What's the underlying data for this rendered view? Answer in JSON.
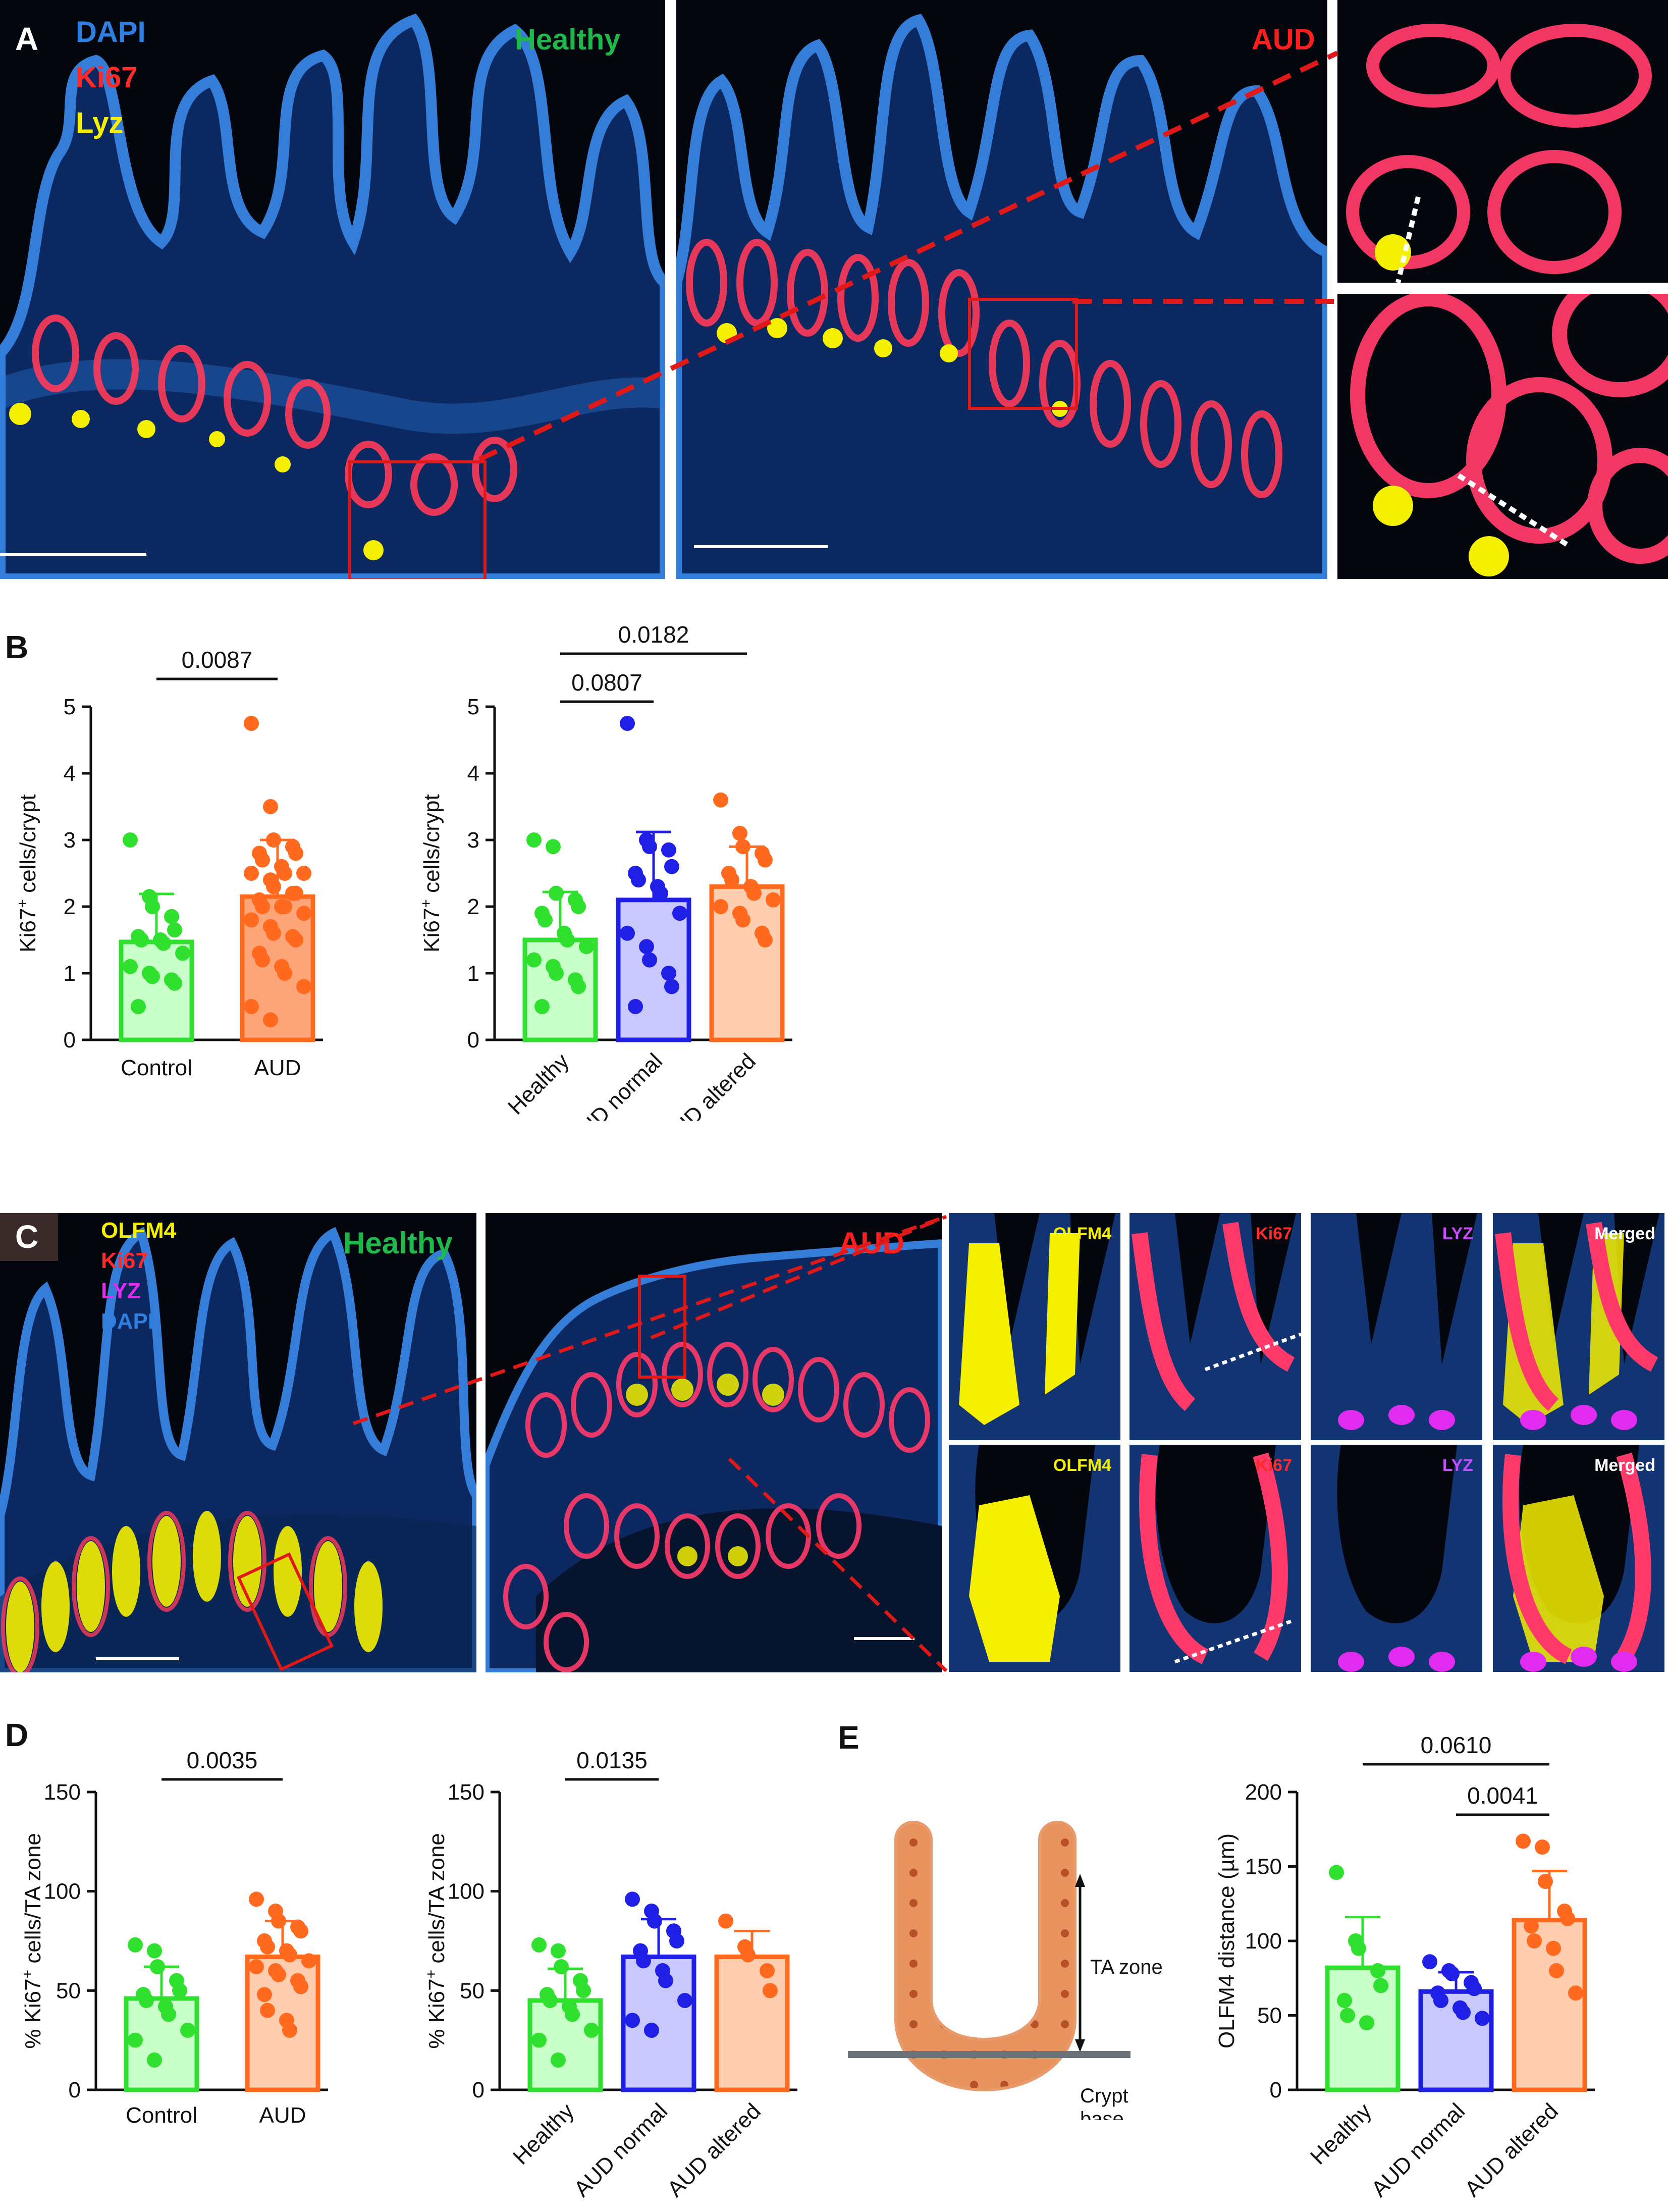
{
  "panels": {
    "a": {
      "letter": "A",
      "channels": [
        "DAPI",
        "Ki67",
        "Lyz"
      ],
      "channel_colors": [
        "#2f7fe0",
        "#ff2a2a",
        "#f4f000"
      ],
      "healthy_label": "Healthy",
      "aud_label": "AUD",
      "healthy_color": "#1fb84a",
      "aud_color": "#ff1e1e"
    },
    "b": {
      "letter": "B"
    },
    "c": {
      "letter": "C",
      "channels": [
        "OLFM4",
        "Ki67",
        "LYZ",
        "DAPI"
      ],
      "channel_colors": [
        "#f4f000",
        "#ff2a2a",
        "#e22bf0",
        "#2f7fe0"
      ],
      "healthy_label": "Healthy",
      "aud_label": "AUD",
      "inset_labels": [
        "OLFM4",
        "Ki67",
        "LYZ",
        "Merged"
      ],
      "inset_colors": [
        "#f4f000",
        "#ff2a2a",
        "#c84bff",
        "#ffffff"
      ]
    },
    "d": {
      "letter": "D"
    },
    "e": {
      "letter": "E",
      "ta_zone_label": "TA zone",
      "crypt_base_label": "Crypt\nbase"
    }
  },
  "colors": {
    "green": "#2fe02f",
    "green_fill": "#c9ffc9",
    "blue": "#1f1fe6",
    "blue_fill": "#c8c8ff",
    "orange": "#ff6a1f",
    "orange_fill": "#ffcdb0",
    "orange_fill2": "#ffa57a"
  },
  "chart_data": [
    {
      "id": "B1",
      "type": "bar",
      "categories": [
        "Control",
        "AUD"
      ],
      "means": [
        1.47,
        2.15
      ],
      "sd": [
        0.72,
        0.85
      ],
      "points": [
        [
          3.0,
          2.15,
          2.0,
          1.85,
          1.65,
          1.55,
          1.5,
          1.5,
          1.45,
          1.3,
          1.1,
          1.0,
          0.95,
          0.9,
          0.85,
          0.5
        ],
        [
          4.75,
          3.5,
          3.0,
          2.9,
          2.8,
          2.8,
          2.7,
          2.6,
          2.5,
          2.5,
          2.5,
          2.4,
          2.3,
          2.2,
          2.2,
          2.1,
          2.0,
          2.0,
          2.0,
          1.9,
          1.8,
          1.7,
          1.6,
          1.55,
          1.5,
          1.3,
          1.2,
          1.1,
          1.0,
          0.8,
          0.5,
          0.3
        ]
      ],
      "colors": [
        "green",
        "orange"
      ],
      "fills": [
        "green_fill",
        "orange_fill2"
      ],
      "ylabel_main": "Ki67",
      "ylabel_sup": "+",
      "ylabel_rest": " cells/crypt",
      "yticks": [
        "0",
        "1",
        "2",
        "3",
        "4",
        "5"
      ],
      "ylim": [
        0,
        5
      ],
      "rotated": false,
      "comparisons": [
        {
          "a": 0,
          "b": 1,
          "label": "0.0087"
        }
      ]
    },
    {
      "id": "B2",
      "type": "bar",
      "categories": [
        "Healthy",
        "AUD normal",
        "AUD altered"
      ],
      "means": [
        1.5,
        2.1,
        2.3
      ],
      "sd": [
        0.72,
        1.02,
        0.6
      ],
      "points": [
        [
          3.0,
          2.9,
          2.2,
          2.1,
          2.0,
          1.9,
          1.8,
          1.6,
          1.5,
          1.4,
          1.2,
          1.1,
          1.0,
          0.9,
          0.8,
          0.5
        ],
        [
          4.75,
          3.0,
          2.9,
          2.85,
          2.6,
          2.5,
          2.4,
          2.3,
          2.2,
          1.9,
          1.6,
          1.4,
          1.2,
          1.0,
          0.8,
          0.5
        ],
        [
          3.6,
          3.1,
          2.9,
          2.8,
          2.7,
          2.5,
          2.4,
          2.3,
          2.2,
          2.1,
          2.0,
          1.9,
          1.8,
          1.6,
          1.5
        ]
      ],
      "colors": [
        "green",
        "blue",
        "orange"
      ],
      "fills": [
        "green_fill",
        "blue_fill",
        "orange_fill"
      ],
      "ylabel_main": "Ki67",
      "ylabel_sup": "+",
      "ylabel_rest": " cells/crypt",
      "yticks": [
        "0",
        "1",
        "2",
        "3",
        "4",
        "5"
      ],
      "ylim": [
        0,
        5
      ],
      "rotated": true,
      "comparisons": [
        {
          "a": 0,
          "b": 1,
          "label": "0.0807"
        },
        {
          "a": 0,
          "b": 2,
          "label": "0.0182"
        }
      ]
    },
    {
      "id": "D1",
      "type": "bar",
      "categories": [
        "Control",
        "AUD"
      ],
      "means": [
        46,
        67
      ],
      "sd": [
        16,
        18
      ],
      "points": [
        [
          73,
          70,
          62,
          55,
          50,
          48,
          45,
          42,
          38,
          30,
          25,
          15
        ],
        [
          96,
          90,
          85,
          82,
          80,
          75,
          72,
          70,
          68,
          65,
          62,
          60,
          58,
          55,
          52,
          48,
          40,
          35,
          30
        ]
      ],
      "colors": [
        "green",
        "orange"
      ],
      "fills": [
        "green_fill",
        "orange_fill"
      ],
      "ylabel_main": "% Ki67",
      "ylabel_sup": "+",
      "ylabel_rest": " cells/TA zone",
      "yticks": [
        "0",
        "50",
        "100",
        "150"
      ],
      "ylim": [
        0,
        150
      ],
      "rotated": false,
      "comparisons": [
        {
          "a": 0,
          "b": 1,
          "label": "0.0035"
        }
      ]
    },
    {
      "id": "D2",
      "type": "bar",
      "categories": [
        "Healthy",
        "AUD normal",
        "AUD altered"
      ],
      "means": [
        45,
        67,
        67
      ],
      "sd": [
        16,
        19,
        13
      ],
      "points": [
        [
          73,
          70,
          62,
          55,
          50,
          48,
          45,
          42,
          38,
          30,
          25,
          15
        ],
        [
          96,
          90,
          85,
          80,
          75,
          70,
          65,
          60,
          55,
          45,
          35,
          30
        ],
        [
          85,
          72,
          68,
          60,
          50
        ]
      ],
      "colors": [
        "green",
        "blue",
        "orange"
      ],
      "fills": [
        "green_fill",
        "blue_fill",
        "orange_fill"
      ],
      "ylabel_main": "% Ki67",
      "ylabel_sup": "+",
      "ylabel_rest": " cells/TA zone",
      "yticks": [
        "0",
        "50",
        "100",
        "150"
      ],
      "ylim": [
        0,
        150
      ],
      "rotated": true,
      "comparisons": [
        {
          "a": 0,
          "b": 1,
          "label": "0.0135"
        }
      ]
    },
    {
      "id": "E",
      "type": "bar",
      "categories": [
        "Healthy",
        "AUD normal",
        "AUD altered"
      ],
      "means": [
        82,
        66,
        114
      ],
      "sd": [
        34,
        13,
        33
      ],
      "points": [
        [
          146,
          100,
          95,
          80,
          70,
          60,
          50,
          45
        ],
        [
          86,
          80,
          78,
          72,
          68,
          65,
          60,
          55,
          52,
          48
        ],
        [
          167,
          163,
          140,
          120,
          115,
          110,
          100,
          95,
          80,
          65
        ]
      ],
      "colors": [
        "green",
        "blue",
        "orange"
      ],
      "fills": [
        "green_fill",
        "blue_fill",
        "orange_fill"
      ],
      "ylabel_main": "OLFM4 distance (µm)",
      "ylabel_sup": "",
      "ylabel_rest": "",
      "yticks": [
        "0",
        "50",
        "100",
        "150",
        "200"
      ],
      "ylim": [
        0,
        200
      ],
      "rotated": true,
      "comparisons": [
        {
          "a": 1,
          "b": 2,
          "label": "0.0041"
        },
        {
          "a": 0,
          "b": 2,
          "label": "0.0610"
        }
      ]
    }
  ]
}
